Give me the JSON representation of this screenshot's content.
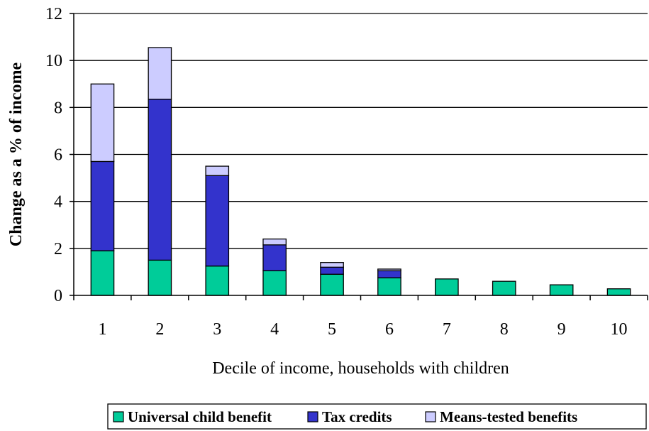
{
  "chart_data": {
    "type": "bar",
    "stacked": true,
    "categories": [
      "1",
      "2",
      "3",
      "4",
      "5",
      "6",
      "7",
      "8",
      "9",
      "10"
    ],
    "series": [
      {
        "name": "Universal child benefit",
        "color": "#00cc99",
        "values": [
          1.9,
          1.5,
          1.25,
          1.05,
          0.9,
          0.75,
          0.7,
          0.6,
          0.45,
          0.28
        ]
      },
      {
        "name": "Tax credits",
        "color": "#3333cc",
        "values": [
          3.8,
          6.85,
          3.85,
          1.1,
          0.3,
          0.3,
          0,
          0,
          0,
          0
        ]
      },
      {
        "name": "Means-tested benefits",
        "color": "#ccccff",
        "values": [
          3.3,
          2.2,
          0.4,
          0.25,
          0.2,
          0.07,
          0,
          0,
          0,
          0
        ]
      }
    ],
    "xlabel": "Decile of income, households with children",
    "ylabel": "Change as a % of income",
    "ylim": [
      0,
      12
    ],
    "yticks": [
      0,
      2,
      4,
      6,
      8,
      10,
      12
    ],
    "grid": "horizontal",
    "legend_position": "bottom"
  }
}
